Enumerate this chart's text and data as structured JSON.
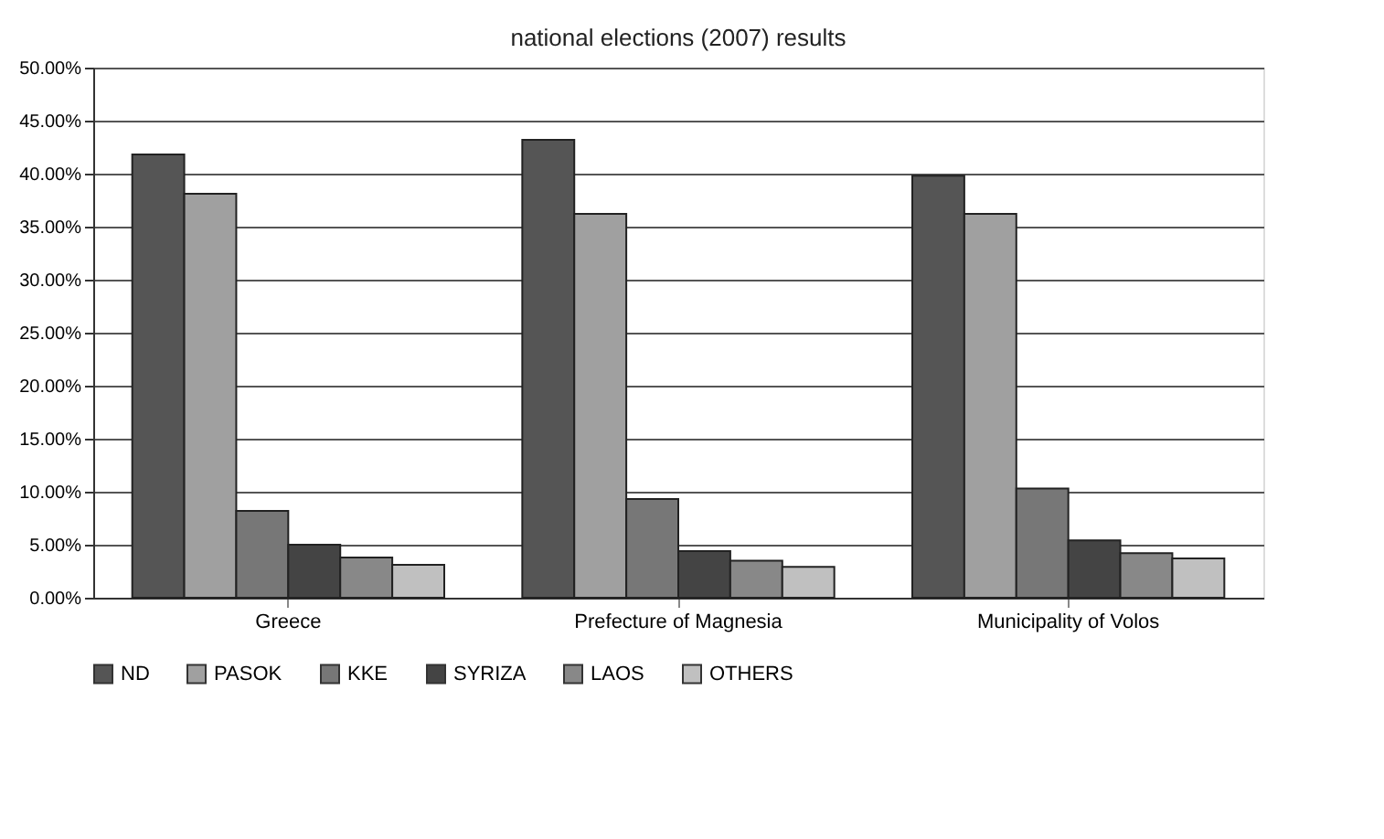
{
  "chart_data": {
    "type": "bar",
    "title": "national elections (2007) results",
    "categories": [
      "Greece",
      "Prefecture of Magnesia",
      "Municipality of Volos"
    ],
    "series": [
      {
        "name": "ND",
        "color": "#555555",
        "values": [
          41.8,
          43.2,
          39.8
        ]
      },
      {
        "name": "PASOK",
        "color": "#a0a0a0",
        "values": [
          38.1,
          36.2,
          36.2
        ]
      },
      {
        "name": "KKE",
        "color": "#777777",
        "values": [
          8.2,
          9.3,
          10.3
        ]
      },
      {
        "name": "SYRIZA",
        "color": "#444444",
        "values": [
          5.0,
          4.4,
          5.4
        ]
      },
      {
        "name": "LAOS",
        "color": "#888888",
        "values": [
          3.8,
          3.5,
          4.2
        ]
      },
      {
        "name": "OTHERS",
        "color": "#c0c0c0",
        "values": [
          3.1,
          2.9,
          3.7
        ]
      }
    ],
    "ylim": [
      0,
      50
    ],
    "yticks": [
      {
        "value": 0,
        "label": "0.00%"
      },
      {
        "value": 5,
        "label": "5.00%"
      },
      {
        "value": 10,
        "label": "10.00%"
      },
      {
        "value": 15,
        "label": "15.00%"
      },
      {
        "value": 20,
        "label": "20.00%"
      },
      {
        "value": 25,
        "label": "25.00%"
      },
      {
        "value": 30,
        "label": "30.00%"
      },
      {
        "value": 35,
        "label": "35.00%"
      },
      {
        "value": 40,
        "label": "40.00%"
      },
      {
        "value": 45,
        "label": "45.00%"
      },
      {
        "value": 50,
        "label": "50.00%"
      }
    ],
    "grid": "y",
    "legend": "bottom"
  }
}
